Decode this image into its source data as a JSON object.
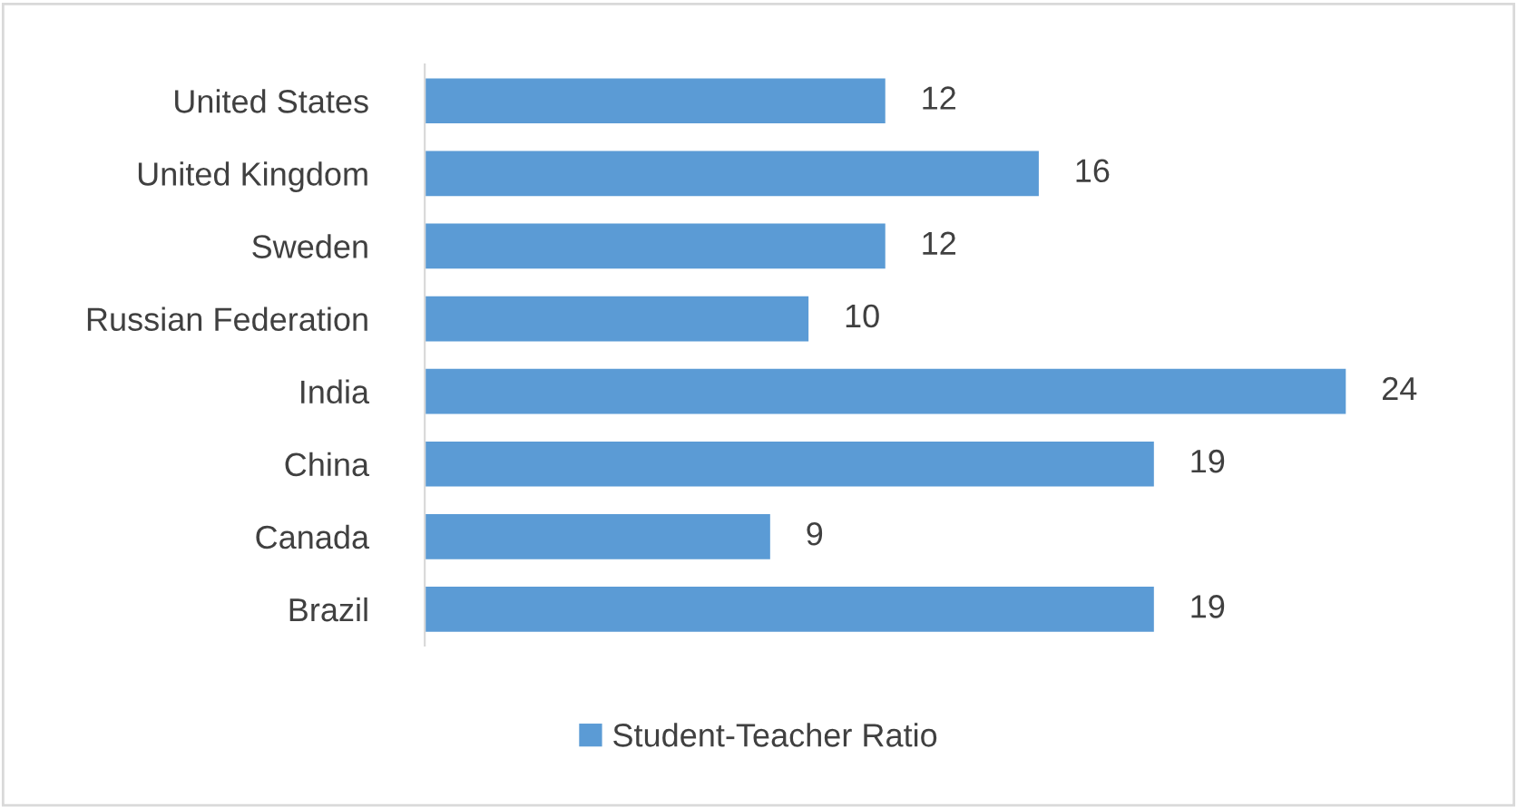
{
  "chart_data": {
    "type": "bar",
    "orientation": "horizontal",
    "categories": [
      "United States",
      "United Kingdom",
      "Sweden",
      "Russian Federation",
      "India",
      "China",
      "Canada",
      "Brazil"
    ],
    "series": [
      {
        "name": "Student-Teacher Ratio",
        "color": "#5b9bd5",
        "values": [
          12,
          16,
          12,
          10,
          24,
          19,
          9,
          19
        ]
      }
    ],
    "data_labels": true,
    "legend": "bottom",
    "grid": false,
    "tick_labels": "y"
  }
}
